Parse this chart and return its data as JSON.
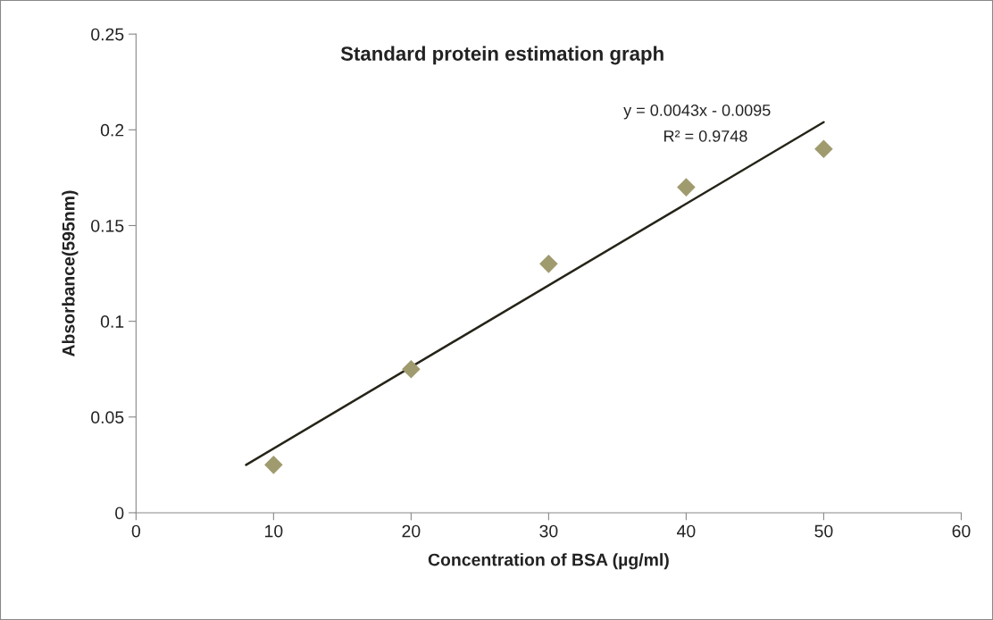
{
  "chart_data": {
    "type": "scatter",
    "title": "Standard protein estimation graph",
    "xlabel": "Concentration of BSA (µg/ml)",
    "ylabel": "Absorbance(595nm)",
    "annotations": [
      "y = 0.0043x - 0.0095",
      "R² = 0.9748"
    ],
    "series": [
      {
        "color": "#a09b6e",
        "marker": "diamond",
        "x": [
          10,
          20,
          30,
          40,
          50
        ],
        "values": [
          0.025,
          0.075,
          0.13,
          0.17,
          0.19
        ]
      },
      {
        "type": "line",
        "color": "#262418",
        "marker": "none",
        "line_style": "solid",
        "x": [
          8,
          50
        ],
        "values": [
          0.025,
          0.204
        ]
      }
    ],
    "xlim": [
      0,
      60
    ],
    "xticks": [
      0,
      10,
      20,
      30,
      40,
      50,
      60
    ],
    "ylim": [
      0,
      0.25
    ],
    "yticks": [
      0,
      0.05,
      0.1,
      0.15,
      0.2,
      0.25
    ],
    "grid": false,
    "legend": false
  }
}
